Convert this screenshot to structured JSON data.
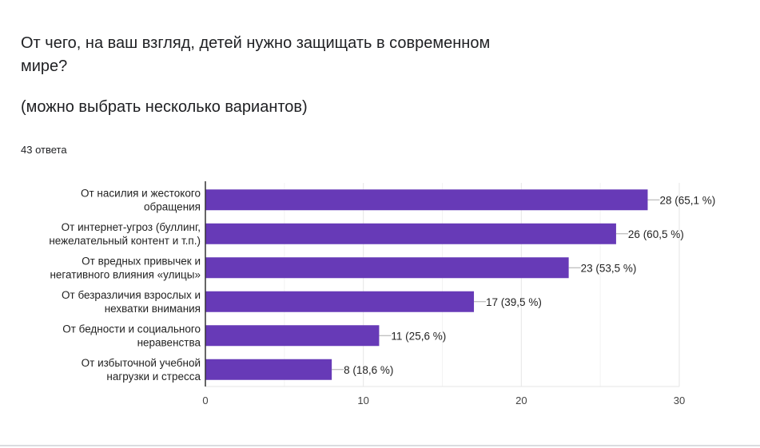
{
  "question": "От чего, на ваш взгляд, детей нужно защищать в современном мире?",
  "subtitle": "(можно выбрать несколько вариантов)",
  "response_count": "43 ответа",
  "colors": {
    "bar": "#673ab7",
    "grid": "#ebebeb",
    "axis": "#333333"
  },
  "chart_data": {
    "type": "bar",
    "orientation": "horizontal",
    "categories": [
      [
        "От насилия и жестокого",
        "обращения"
      ],
      [
        "От интернет-угроз (буллинг,",
        "нежелательный контент и т.п.)"
      ],
      [
        "От вредных привычек и",
        "негативного влияния «улицы»"
      ],
      [
        "От безразличия взрослых и",
        "нехватки внимания"
      ],
      [
        "От бедности и социального",
        "неравенства"
      ],
      [
        "От избыточной учебной",
        "нагрузки и стресса"
      ]
    ],
    "values": [
      28,
      26,
      23,
      17,
      11,
      8
    ],
    "data_labels": [
      "28 (65,1 %)",
      "26 (60,5 %)",
      "23 (53,5 %)",
      "17 (39,5 %)",
      "11 (25,6 %)",
      "8 (18,6 %)"
    ],
    "xlim": [
      0,
      30
    ],
    "xticks": [
      "0",
      "10",
      "20",
      "30"
    ],
    "grid": true
  }
}
